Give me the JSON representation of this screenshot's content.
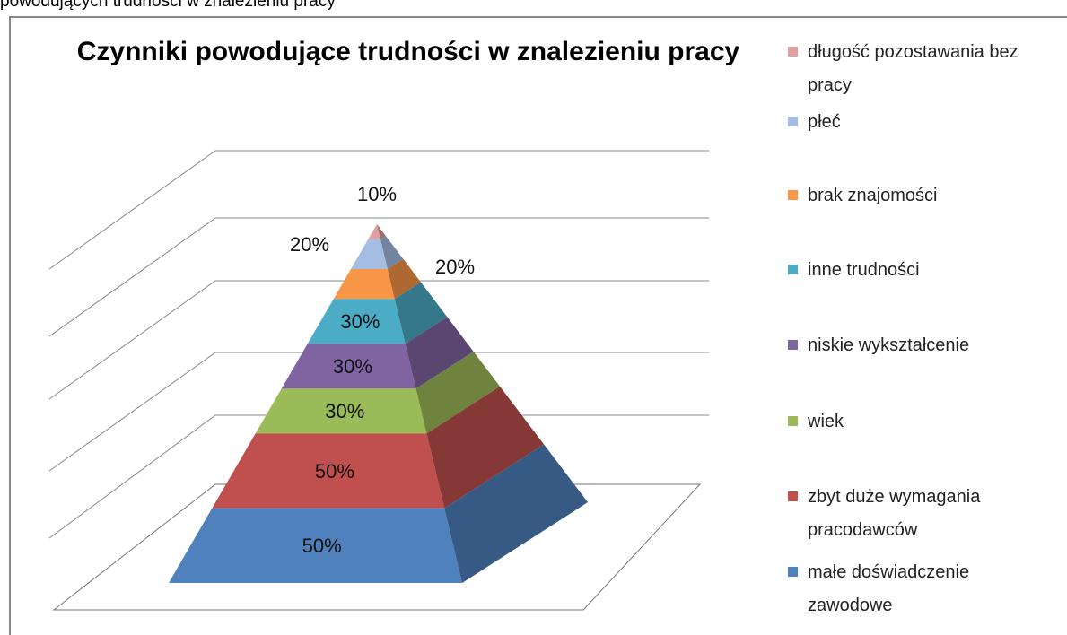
{
  "caption": "powodujących trudności w znalezieniu pracy",
  "chart_data": {
    "type": "pyramid",
    "title": "Czynniki powodujące trudności w znalezieniu pracy",
    "categories": [
      "długość pozostawania bez pracy",
      "płeć",
      "brak znajomości",
      "inne trudności",
      "niskie wykształcenie",
      "wiek",
      "zbyt duże wymagania pracodawców",
      "małe doświadczenie zawodowe"
    ],
    "values": [
      10,
      20,
      20,
      30,
      30,
      30,
      50,
      50
    ],
    "value_labels": [
      "10%",
      "20%",
      "20%",
      "30%",
      "30%",
      "30%",
      "50%",
      "50%"
    ],
    "colors": [
      "#e0a09f",
      "#a5bde3",
      "#f79646",
      "#4bacc6",
      "#8064a2",
      "#9bbb59",
      "#c0504d",
      "#4f81bd"
    ],
    "grid": true,
    "legend": "right"
  }
}
